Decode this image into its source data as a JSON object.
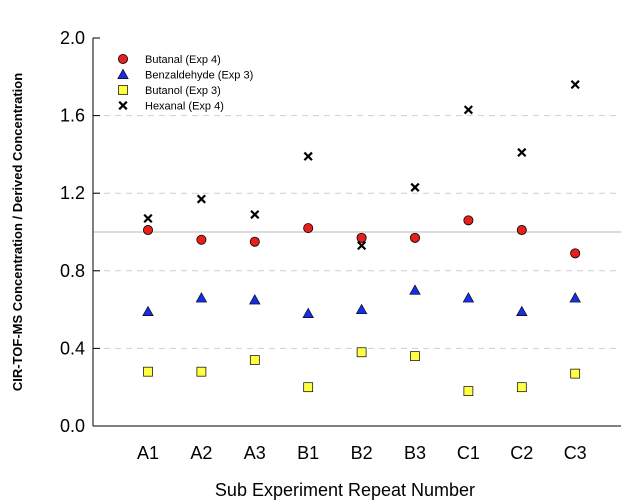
{
  "chart_data": {
    "type": "scatter",
    "title": "",
    "xlabel": "Sub Experiment Repeat Number",
    "ylabel": "CIR-TOF-MS Concentration / Derived Concentration",
    "categories": [
      "A1",
      "A2",
      "A3",
      "B1",
      "B2",
      "B3",
      "C1",
      "C2",
      "C3"
    ],
    "ylim": [
      0.0,
      2.0
    ],
    "yticks": [
      "0.0",
      "0.4",
      "0.8",
      "1.2",
      "1.6",
      "2.0"
    ],
    "ytick_values": [
      0.0,
      0.4,
      0.8,
      1.2,
      1.6,
      2.0
    ],
    "grid": "dashed horizontal at 0.4, 0.8, 1.2, 1.6",
    "reference_line": 1.0,
    "legend_position": "top-left",
    "series": [
      {
        "name": "Butanal (Exp 4)",
        "marker": "circle",
        "color": "#e8201c",
        "values": [
          1.01,
          0.96,
          0.95,
          1.02,
          0.97,
          0.97,
          1.06,
          1.01,
          0.89
        ]
      },
      {
        "name": "Benzaldehyde (Exp 3)",
        "marker": "triangle",
        "color": "#1a2ee0",
        "values": [
          0.59,
          0.66,
          0.65,
          0.58,
          0.6,
          0.7,
          0.66,
          0.59,
          0.66
        ]
      },
      {
        "name": "Butanol (Exp 3)",
        "marker": "square",
        "color": "#ffff44",
        "values": [
          0.28,
          0.28,
          0.34,
          0.2,
          0.38,
          0.36,
          0.18,
          0.2,
          0.27
        ]
      },
      {
        "name": "Hexanal (Exp 4)",
        "marker": "x",
        "color": "#000000",
        "values": [
          1.07,
          1.17,
          1.09,
          1.39,
          0.93,
          1.23,
          1.63,
          1.41,
          1.76
        ]
      }
    ]
  }
}
